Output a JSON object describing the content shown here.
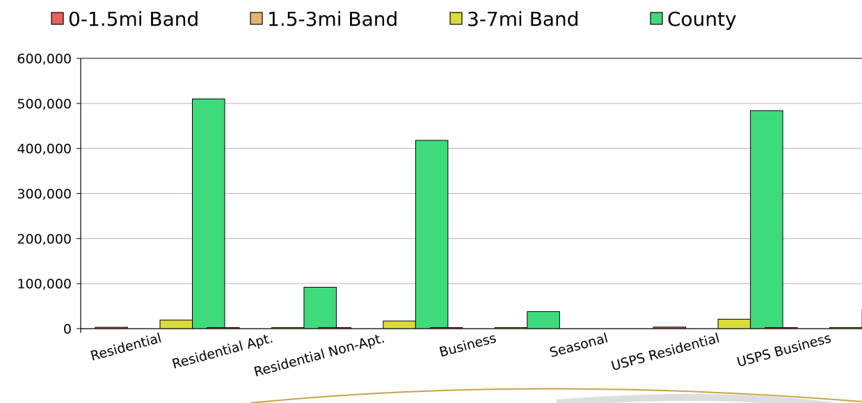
{
  "chart_data": {
    "type": "bar",
    "categories": [
      "Residential",
      "Residential Apt.",
      "Residential Non-Apt.",
      "Business",
      "Seasonal",
      "USPS Residential",
      "USPS Business"
    ],
    "series": [
      {
        "name": "0-1.5mi Band",
        "color": "#e8615d",
        "values": [
          3000,
          200,
          2500,
          300,
          0,
          3500,
          400
        ]
      },
      {
        "name": "1.5-3mi Band",
        "color": "#e5b46a",
        "values": [
          0,
          0,
          0,
          0,
          0,
          0,
          0
        ]
      },
      {
        "name": "3-7mi Band",
        "color": "#dbdb3c",
        "values": [
          19000,
          1500,
          17000,
          800,
          0,
          21000,
          1500
        ]
      },
      {
        "name": "County",
        "color": "#3ddb7c",
        "values": [
          510000,
          92000,
          418000,
          38000,
          0,
          484000,
          42000
        ]
      }
    ],
    "yticks": [
      "0",
      "100,000",
      "200,000",
      "300,000",
      "400,000",
      "500,000",
      "600,000"
    ],
    "ylim": [
      0,
      600000
    ],
    "gridlines": true,
    "legend_position": "top"
  }
}
